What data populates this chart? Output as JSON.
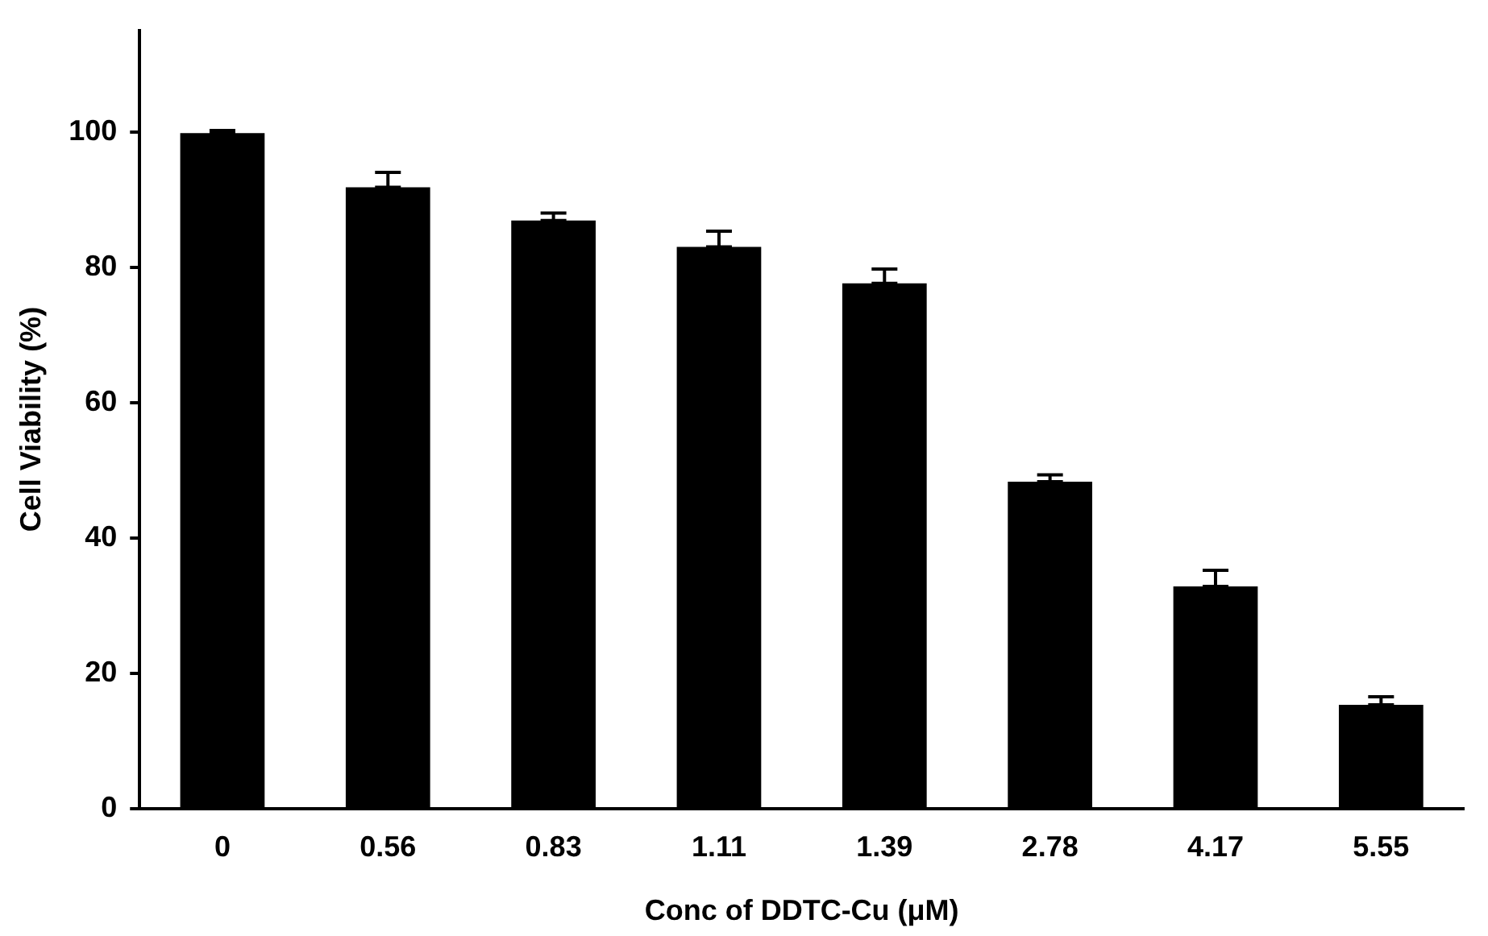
{
  "chart_data": {
    "type": "bar",
    "xlabel": "Conc of DDTC-Cu (μM)",
    "ylabel": "Cell Viability (%)",
    "categories": [
      "0",
      "0.56",
      "0.83",
      "1.11",
      "1.39",
      "2.78",
      "4.17",
      "5.55"
    ],
    "values": [
      99.8,
      91.8,
      86.9,
      83,
      77.6,
      48.3,
      32.8,
      15.3
    ],
    "errors": [
      [
        99.8,
        100.2
      ],
      [
        91.8,
        94
      ],
      [
        86.9,
        88
      ],
      [
        83,
        85.3
      ],
      [
        77.6,
        79.7
      ],
      [
        48.3,
        49.3
      ],
      [
        32.8,
        35.2
      ],
      [
        15.3,
        16.5
      ]
    ],
    "color": "#000000",
    "ylim": [
      0,
      115
    ],
    "yticks": [
      0,
      20,
      40,
      60,
      80,
      100
    ],
    "grid": false,
    "legend": false
  }
}
